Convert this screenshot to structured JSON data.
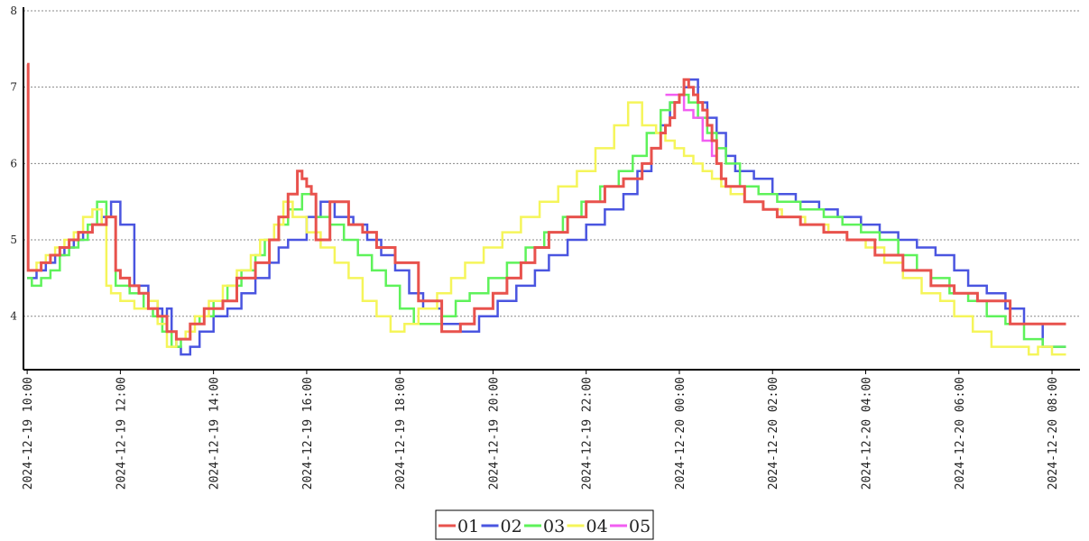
{
  "chart_data": {
    "type": "line",
    "title": "",
    "xlabel": "",
    "ylabel": "",
    "ylim": [
      3.3,
      8.0
    ],
    "yticks": [
      4,
      5,
      6,
      7,
      8
    ],
    "grid": true,
    "legend_position": "bottom-center",
    "xtick_labels": [
      "2024-12-19 10:00",
      "2024-12-19 12:00",
      "2024-12-19 14:00",
      "2024-12-19 16:00",
      "2024-12-19 18:00",
      "2024-12-19 20:00",
      "2024-12-19 22:00",
      "2024-12-20 00:00",
      "2024-12-20 02:00",
      "2024-12-20 04:00",
      "2024-12-20 06:00",
      "2024-12-20 08:00"
    ],
    "x_hours_range": [
      -0.08,
      22.6
    ],
    "series": [
      {
        "name": "01",
        "color": "#e8524d",
        "x": [
          0,
          0.02,
          0.3,
          0.5,
          0.7,
          0.9,
          1.1,
          1.4,
          1.7,
          1.9,
          2.0,
          2.2,
          2.4,
          2.6,
          2.8,
          3.0,
          3.2,
          3.5,
          3.8,
          4.2,
          4.5,
          4.9,
          5.2,
          5.4,
          5.6,
          5.8,
          5.9,
          6.0,
          6.1,
          6.2,
          6.5,
          6.9,
          7.2,
          7.5,
          7.9,
          8.4,
          8.9,
          9.3,
          9.6,
          10.0,
          10.3,
          10.6,
          10.9,
          11.2,
          11.6,
          12.0,
          12.4,
          12.8,
          13.2,
          13.4,
          13.6,
          13.7,
          13.8,
          13.9,
          14.0,
          14.1,
          14.2,
          14.3,
          14.4,
          14.5,
          14.6,
          14.7,
          14.8,
          14.9,
          15.0,
          15.4,
          15.8,
          16.1,
          16.6,
          17.1,
          17.6,
          18.2,
          18.8,
          19.4,
          19.9,
          20.4,
          20.7,
          21.1,
          21.5,
          21.8,
          22.3
        ],
        "y": [
          7.3,
          4.6,
          4.7,
          4.8,
          4.9,
          5.0,
          5.1,
          5.2,
          5.3,
          4.6,
          4.5,
          4.4,
          4.3,
          4.1,
          4.0,
          3.8,
          3.7,
          3.9,
          4.1,
          4.2,
          4.5,
          4.7,
          5.0,
          5.3,
          5.6,
          5.9,
          5.8,
          5.7,
          5.6,
          5.0,
          5.5,
          5.2,
          5.1,
          4.9,
          4.7,
          4.2,
          3.8,
          3.9,
          4.1,
          4.3,
          4.5,
          4.7,
          4.9,
          5.1,
          5.3,
          5.5,
          5.7,
          5.8,
          6.0,
          6.2,
          6.4,
          6.5,
          6.6,
          6.8,
          6.9,
          7.1,
          7.0,
          6.9,
          6.8,
          6.7,
          6.5,
          6.3,
          6.0,
          5.8,
          5.7,
          5.5,
          5.4,
          5.3,
          5.2,
          5.1,
          5.0,
          4.8,
          4.6,
          4.4,
          4.3,
          4.2,
          4.2,
          3.9,
          3.9,
          3.9,
          3.9
        ]
      },
      {
        "name": "02",
        "color": "#4a55e0",
        "x": [
          0,
          0.2,
          0.4,
          0.6,
          0.8,
          1.0,
          1.2,
          1.4,
          1.6,
          1.8,
          2.0,
          2.3,
          2.6,
          2.8,
          2.9,
          3.0,
          3.1,
          3.2,
          3.3,
          3.5,
          3.7,
          4.0,
          4.3,
          4.6,
          4.9,
          5.2,
          5.4,
          5.6,
          6.0,
          6.3,
          6.6,
          7.0,
          7.3,
          7.6,
          7.9,
          8.2,
          8.5,
          8.9,
          9.3,
          9.7,
          10.1,
          10.5,
          10.9,
          11.2,
          11.6,
          12.0,
          12.4,
          12.8,
          13.1,
          13.4,
          13.6,
          13.8,
          14.0,
          14.1,
          14.2,
          14.4,
          14.6,
          14.8,
          15.0,
          15.2,
          15.6,
          16.0,
          16.5,
          17.0,
          17.4,
          17.9,
          18.3,
          18.7,
          19.1,
          19.5,
          19.9,
          20.2,
          20.6,
          21.0,
          21.4,
          21.8,
          22.3
        ],
        "y": [
          4.5,
          4.6,
          4.7,
          4.8,
          4.9,
          5.0,
          5.1,
          5.2,
          5.3,
          5.5,
          5.2,
          4.4,
          4.2,
          4.1,
          3.9,
          4.1,
          3.8,
          3.6,
          3.5,
          3.6,
          3.8,
          4.0,
          4.1,
          4.3,
          4.5,
          4.7,
          4.9,
          5.0,
          5.3,
          5.5,
          5.3,
          5.2,
          5.0,
          4.8,
          4.6,
          4.3,
          4.1,
          3.9,
          3.8,
          4.0,
          4.2,
          4.4,
          4.6,
          4.8,
          5.0,
          5.2,
          5.4,
          5.6,
          5.9,
          6.2,
          6.5,
          6.8,
          6.9,
          7.0,
          7.1,
          6.8,
          6.6,
          6.4,
          6.1,
          5.9,
          5.8,
          5.6,
          5.5,
          5.4,
          5.3,
          5.2,
          5.1,
          5.0,
          4.9,
          4.8,
          4.6,
          4.4,
          4.3,
          4.1,
          3.9,
          3.6,
          3.6
        ]
      },
      {
        "name": "03",
        "color": "#5ef25a",
        "x": [
          0,
          0.1,
          0.3,
          0.5,
          0.7,
          0.9,
          1.1,
          1.3,
          1.5,
          1.7,
          1.9,
          2.2,
          2.5,
          2.7,
          2.9,
          3.1,
          3.3,
          3.5,
          3.7,
          4.0,
          4.3,
          4.6,
          4.9,
          5.1,
          5.4,
          5.6,
          5.9,
          6.2,
          6.5,
          6.8,
          7.1,
          7.4,
          7.7,
          8.0,
          8.3,
          8.6,
          8.9,
          9.2,
          9.5,
          9.9,
          10.3,
          10.7,
          11.1,
          11.5,
          11.9,
          12.3,
          12.7,
          13.0,
          13.3,
          13.6,
          13.8,
          14.0,
          14.2,
          14.4,
          14.6,
          14.8,
          15.0,
          15.3,
          15.7,
          16.1,
          16.6,
          17.1,
          17.5,
          17.9,
          18.3,
          18.7,
          19.1,
          19.4,
          19.8,
          20.2,
          20.6,
          21.0,
          21.4,
          21.8,
          22.3
        ],
        "y": [
          4.5,
          4.4,
          4.5,
          4.6,
          4.8,
          4.9,
          5.0,
          5.2,
          5.5,
          5.3,
          4.4,
          4.3,
          4.1,
          4.0,
          3.8,
          3.6,
          3.7,
          3.9,
          4.0,
          4.2,
          4.4,
          4.6,
          4.8,
          5.0,
          5.2,
          5.4,
          5.6,
          5.3,
          5.2,
          5.0,
          4.8,
          4.6,
          4.4,
          4.1,
          3.9,
          3.9,
          4.0,
          4.2,
          4.3,
          4.5,
          4.7,
          4.9,
          5.1,
          5.3,
          5.5,
          5.7,
          5.9,
          6.1,
          6.4,
          6.7,
          6.8,
          6.9,
          6.8,
          6.6,
          6.4,
          6.2,
          6.0,
          5.7,
          5.6,
          5.5,
          5.4,
          5.3,
          5.2,
          5.1,
          5.0,
          4.8,
          4.6,
          4.5,
          4.3,
          4.2,
          4.0,
          3.9,
          3.7,
          3.6,
          3.6
        ]
      },
      {
        "name": "04",
        "color": "#f5f55a",
        "x": [
          0,
          0.2,
          0.4,
          0.6,
          0.8,
          1.0,
          1.2,
          1.4,
          1.6,
          1.7,
          1.8,
          2.0,
          2.3,
          2.6,
          2.8,
          3.0,
          3.2,
          3.4,
          3.6,
          3.9,
          4.2,
          4.5,
          4.8,
          5.0,
          5.3,
          5.5,
          5.7,
          6.0,
          6.3,
          6.6,
          6.9,
          7.2,
          7.5,
          7.8,
          8.1,
          8.4,
          8.8,
          9.1,
          9.4,
          9.8,
          10.2,
          10.6,
          11.0,
          11.4,
          11.8,
          12.2,
          12.6,
          12.9,
          13.2,
          13.5,
          13.7,
          13.9,
          14.1,
          14.3,
          14.5,
          14.7,
          14.9,
          15.1,
          15.4,
          15.8,
          16.2,
          16.7,
          17.2,
          17.6,
          18.0,
          18.4,
          18.8,
          19.2,
          19.6,
          19.9,
          20.3,
          20.7,
          21.1,
          21.5,
          21.7,
          22.0,
          22.3
        ],
        "y": [
          4.6,
          4.7,
          4.8,
          4.9,
          5.0,
          5.1,
          5.3,
          5.4,
          5.2,
          4.4,
          4.3,
          4.2,
          4.1,
          4.2,
          3.9,
          3.6,
          3.7,
          3.8,
          4.0,
          4.2,
          4.4,
          4.6,
          4.8,
          5.0,
          5.2,
          5.5,
          5.3,
          5.1,
          4.9,
          4.7,
          4.5,
          4.2,
          4.0,
          3.8,
          3.9,
          4.1,
          4.3,
          4.5,
          4.7,
          4.9,
          5.1,
          5.3,
          5.5,
          5.7,
          5.9,
          6.2,
          6.5,
          6.8,
          6.5,
          6.4,
          6.3,
          6.2,
          6.1,
          6.0,
          5.9,
          5.8,
          5.7,
          5.6,
          5.5,
          5.4,
          5.3,
          5.2,
          5.1,
          5.0,
          4.9,
          4.7,
          4.5,
          4.3,
          4.2,
          4.0,
          3.8,
          3.6,
          3.6,
          3.5,
          3.6,
          3.5,
          3.5
        ]
      },
      {
        "name": "05",
        "color": "#f25ef2",
        "x": [
          13.7,
          13.9,
          14.1,
          14.3,
          14.5,
          14.7,
          14.8
        ],
        "y": [
          6.9,
          6.9,
          6.7,
          6.6,
          6.3,
          6.1,
          6.0
        ]
      }
    ]
  }
}
